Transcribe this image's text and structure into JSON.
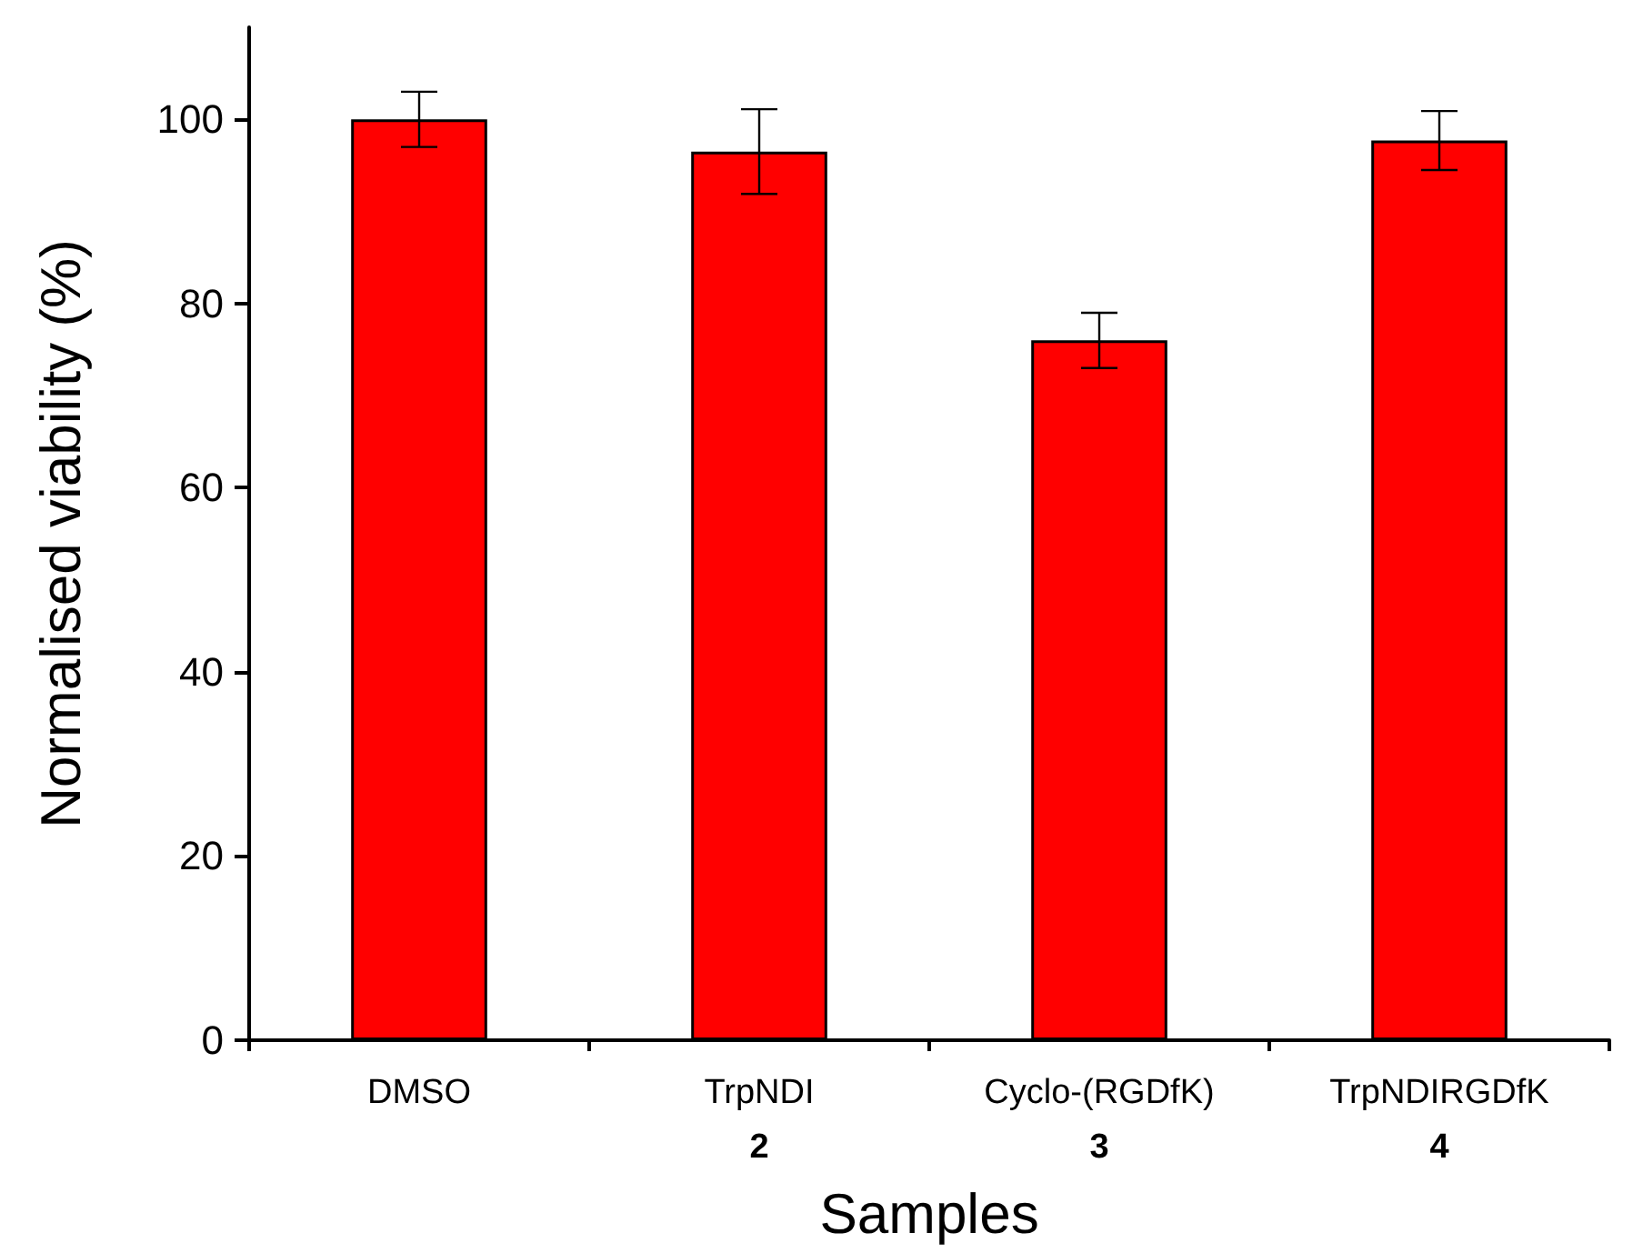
{
  "chart_data": {
    "type": "bar",
    "xlabel": "Samples",
    "ylabel": "Normalised viability (%)",
    "categories": [
      "DMSO",
      "TrpNDI\n2",
      "Cyclo-(RGDfK)\n3",
      "TrpNDIRGDfK\n4"
    ],
    "values": [
      100,
      96.5,
      76,
      97.7
    ],
    "errors": [
      3,
      4.6,
      3,
      3.2
    ],
    "color": "#ff0000",
    "ylim": [
      0,
      110
    ],
    "yticks": [
      0,
      20,
      40,
      60,
      80,
      100
    ],
    "grid": false
  }
}
